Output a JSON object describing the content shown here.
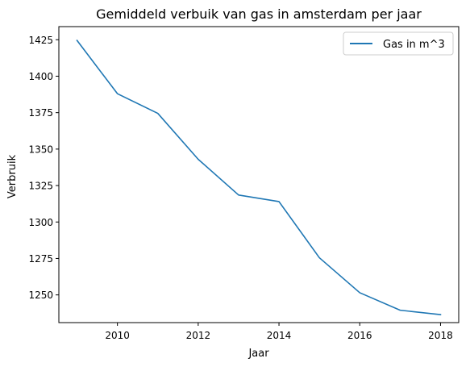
{
  "chart_data": {
    "type": "line",
    "title": "Gemiddeld verbuik van gas in amsterdam per jaar",
    "xlabel": "Jaar",
    "ylabel": "Verbruik",
    "xlim": [
      2008.55,
      2018.45
    ],
    "ylim": [
      1231,
      1434
    ],
    "xticks": [
      2010,
      2012,
      2014,
      2016,
      2018
    ],
    "yticks": [
      1250,
      1275,
      1300,
      1325,
      1350,
      1375,
      1400,
      1425
    ],
    "grid": false,
    "legend_position": "top-right",
    "series": [
      {
        "name": "Gas in m^3",
        "color": "#1f77b4",
        "x": [
          2009,
          2010,
          2011,
          2012,
          2013,
          2014,
          2015,
          2016,
          2017,
          2018
        ],
        "y": [
          1424.5,
          1388,
          1374.5,
          1343,
          1318.5,
          1314,
          1275.5,
          1251.5,
          1239.5,
          1236.5
        ]
      }
    ]
  }
}
